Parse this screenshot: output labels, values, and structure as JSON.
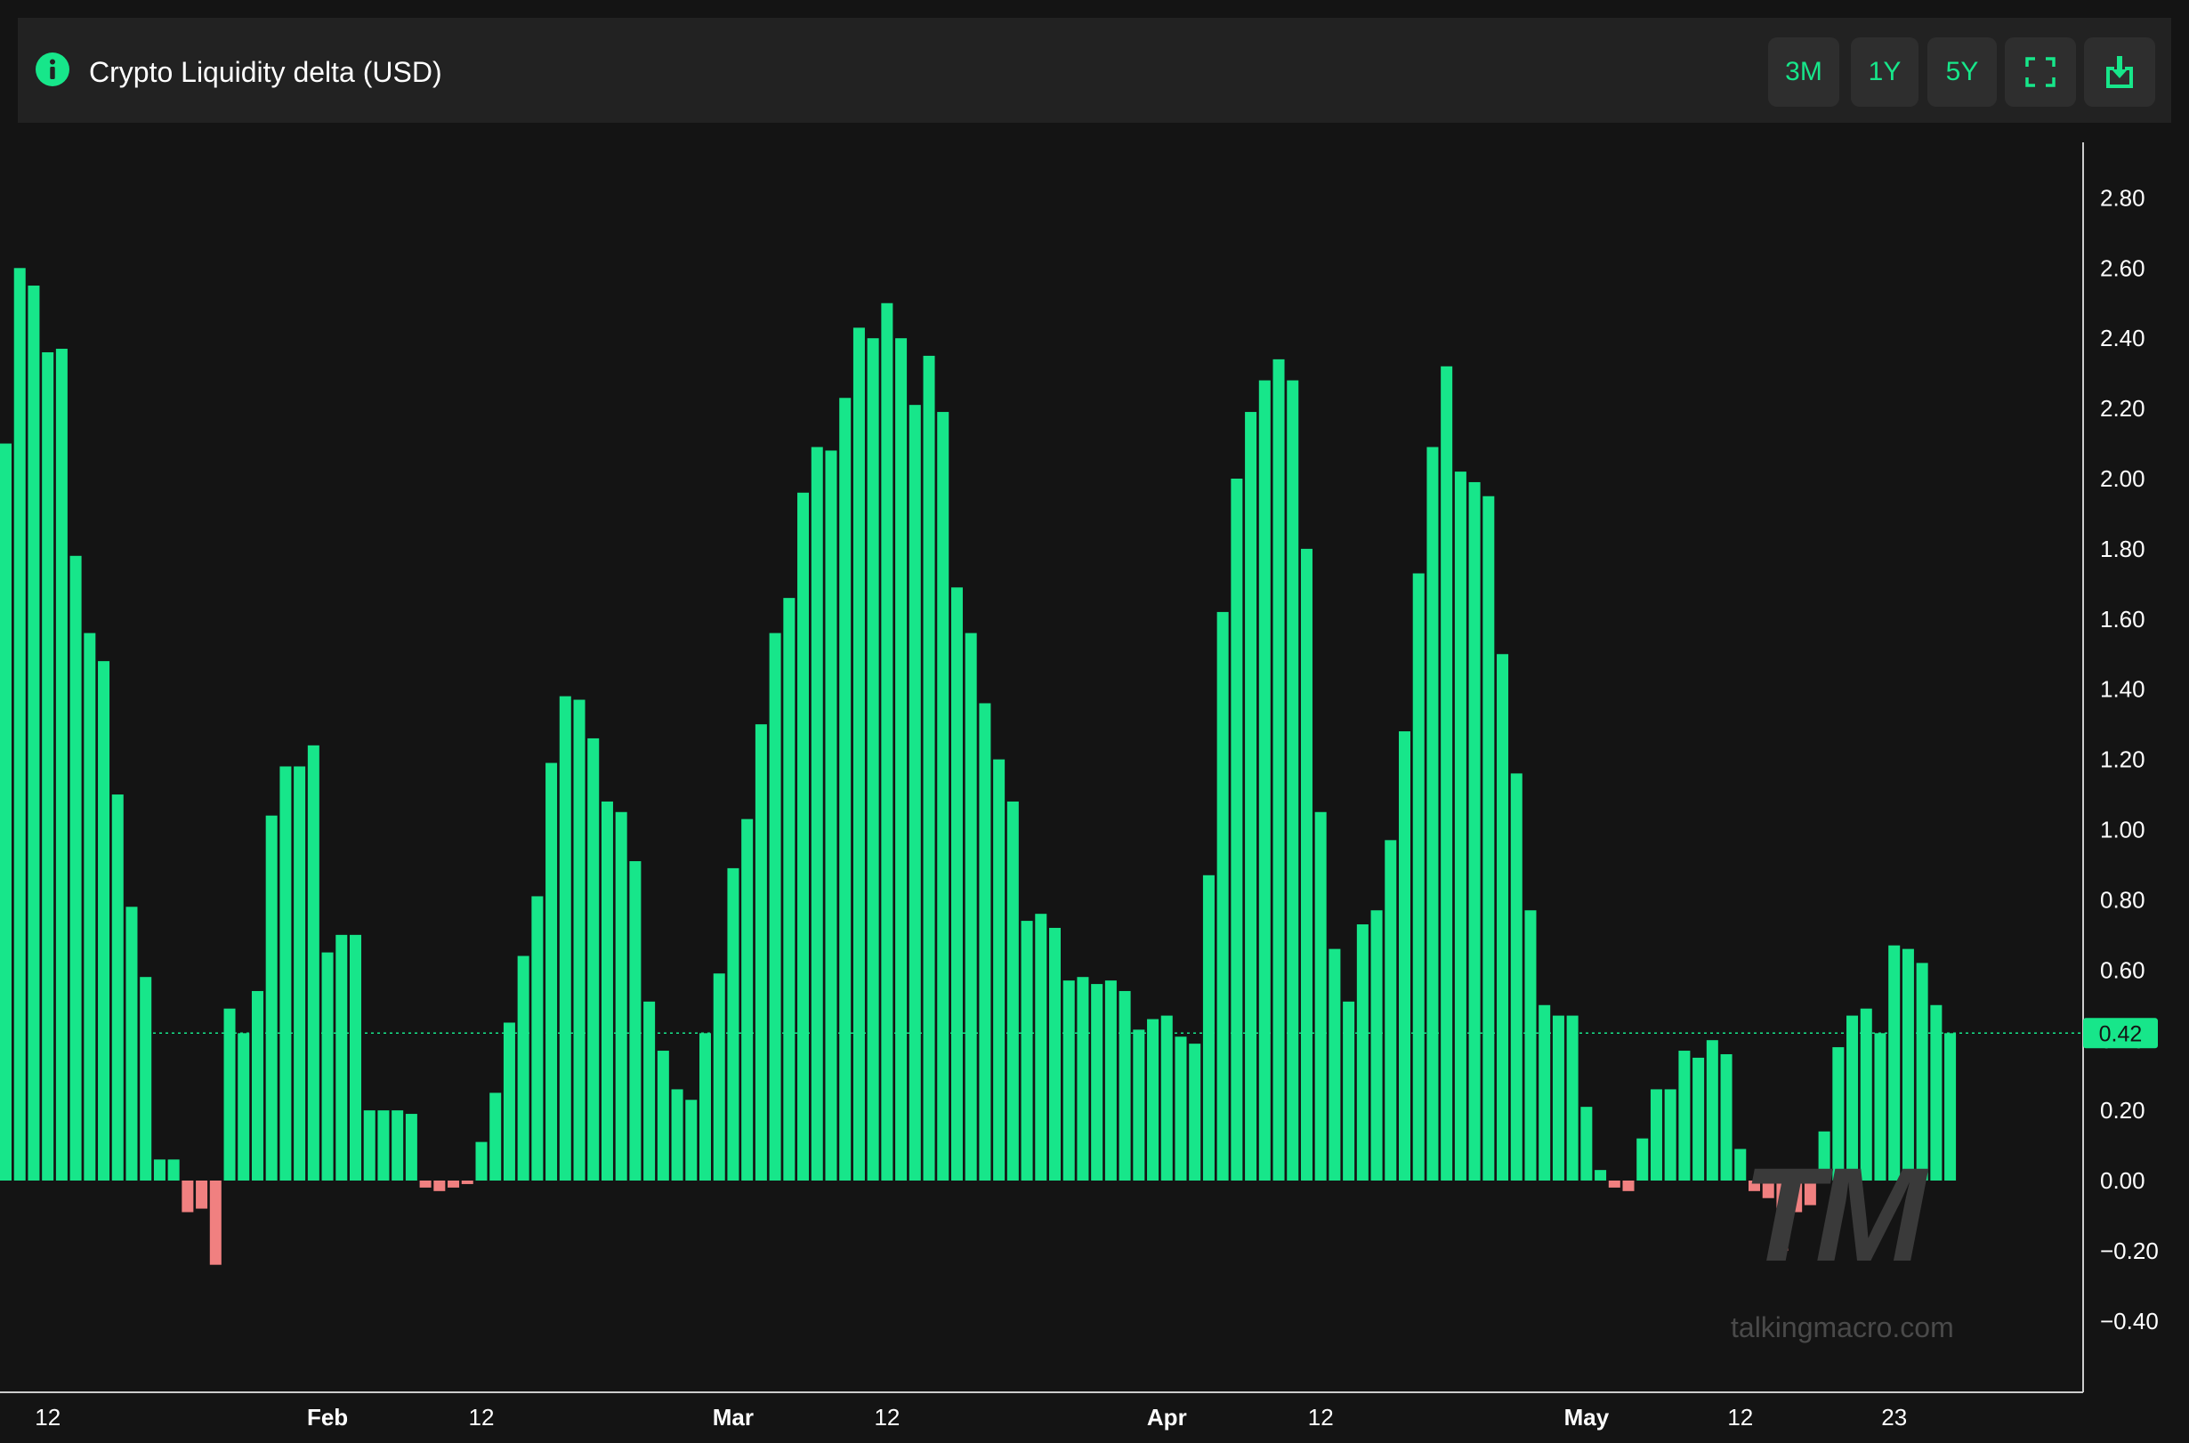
{
  "header": {
    "title": "Crypto Liquidity delta (USD)",
    "buttons": [
      "3M",
      "1Y",
      "5Y"
    ],
    "icons": [
      "info-icon",
      "fullscreen-icon",
      "download-icon"
    ]
  },
  "colors": {
    "positive": "#17e68a",
    "negative": "#f08080",
    "background": "#141414",
    "panel": "#222222",
    "accent": "#17e68a"
  },
  "watermark": {
    "logo": "TM",
    "text": "talkingmacro.com"
  },
  "chart_data": {
    "type": "bar",
    "title": "Crypto Liquidity delta (USD)",
    "ylim": [
      -0.6,
      2.95
    ],
    "y_ticks": [
      2.8,
      2.6,
      2.4,
      2.2,
      2.0,
      1.8,
      1.6,
      1.4,
      1.2,
      1.0,
      0.8,
      0.6,
      0.4,
      0.2,
      0.0,
      -0.2,
      -0.4
    ],
    "y_tick_labels": [
      "2.80",
      "2.60",
      "2.40",
      "2.20",
      "2.00",
      "1.80",
      "1.60",
      "1.40",
      "1.20",
      "1.00",
      "0.80",
      "0.60",
      "0.40",
      "0.20",
      "0.00",
      "−0.20",
      "−0.40"
    ],
    "x_labels": [
      {
        "label": "12",
        "bar_index": 3,
        "bold": false
      },
      {
        "label": "Feb",
        "bar_index": 23,
        "bold": true
      },
      {
        "label": "12",
        "bar_index": 34,
        "bold": false
      },
      {
        "label": "Mar",
        "bar_index": 52,
        "bold": true
      },
      {
        "label": "12",
        "bar_index": 63,
        "bold": false
      },
      {
        "label": "Apr",
        "bar_index": 83,
        "bold": true
      },
      {
        "label": "12",
        "bar_index": 94,
        "bold": false
      },
      {
        "label": "May",
        "bar_index": 113,
        "bold": true
      },
      {
        "label": "12",
        "bar_index": 124,
        "bold": false
      },
      {
        "label": "23",
        "bar_index": 135,
        "bold": false
      }
    ],
    "current_value": 0.42,
    "current_label": "0.42",
    "values": [
      2.1,
      2.6,
      2.55,
      2.36,
      2.37,
      1.78,
      1.56,
      1.48,
      1.1,
      0.78,
      0.58,
      0.06,
      0.06,
      -0.09,
      -0.08,
      -0.24,
      0.49,
      0.42,
      0.54,
      1.04,
      1.18,
      1.18,
      1.24,
      0.65,
      0.7,
      0.7,
      0.2,
      0.2,
      0.2,
      0.19,
      -0.02,
      -0.03,
      -0.02,
      -0.01,
      0.11,
      0.25,
      0.45,
      0.64,
      0.81,
      1.19,
      1.38,
      1.37,
      1.26,
      1.08,
      1.05,
      0.91,
      0.51,
      0.37,
      0.26,
      0.23,
      0.42,
      0.59,
      0.89,
      1.03,
      1.3,
      1.56,
      1.66,
      1.96,
      2.09,
      2.08,
      2.23,
      2.43,
      2.4,
      2.5,
      2.4,
      2.21,
      2.35,
      2.19,
      1.69,
      1.56,
      1.36,
      1.2,
      1.08,
      0.74,
      0.76,
      0.72,
      0.57,
      0.58,
      0.56,
      0.57,
      0.54,
      0.43,
      0.46,
      0.47,
      0.41,
      0.39,
      0.87,
      1.62,
      2.0,
      2.19,
      2.28,
      2.34,
      2.28,
      1.8,
      1.05,
      0.66,
      0.51,
      0.73,
      0.77,
      0.97,
      1.28,
      1.73,
      2.09,
      2.32,
      2.02,
      1.99,
      1.95,
      1.5,
      1.16,
      0.77,
      0.5,
      0.47,
      0.47,
      0.21,
      0.03,
      -0.02,
      -0.03,
      0.12,
      0.26,
      0.26,
      0.37,
      0.35,
      0.4,
      0.36,
      0.09,
      -0.03,
      -0.05,
      -0.2,
      -0.09,
      -0.07,
      0.14,
      0.38,
      0.47,
      0.49,
      0.42,
      0.67,
      0.66,
      0.62,
      0.5,
      0.42
    ]
  }
}
